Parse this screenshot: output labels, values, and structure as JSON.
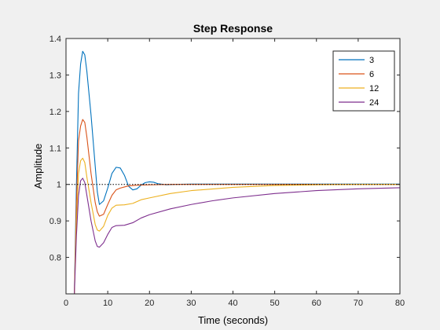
{
  "chart_data": {
    "type": "line",
    "title": "Step Response",
    "xlabel": "Time (seconds)",
    "ylabel": "Amplitude",
    "xlim": [
      0,
      80
    ],
    "ylim": [
      0.7,
      1.4
    ],
    "xticks": [
      0,
      10,
      20,
      30,
      40,
      50,
      60,
      70,
      80
    ],
    "yticks": [
      0.8,
      0.9,
      1.0,
      1.1,
      1.2,
      1.3,
      1.4
    ],
    "ytick_labels": [
      "0.8",
      "0.9",
      "1",
      "1.1",
      "1.2",
      "1.3",
      "1.4"
    ],
    "xtick_labels": [
      "0",
      "10",
      "20",
      "30",
      "40",
      "50",
      "60",
      "70",
      "80"
    ],
    "reference_line": {
      "y": 1.0,
      "style": "dotted"
    },
    "grid": false,
    "legend_position": "top-right",
    "series": [
      {
        "name": "3",
        "color": "#0072BD",
        "points": [
          [
            2,
            0.7
          ],
          [
            2.5,
            1.0
          ],
          [
            3,
            1.25
          ],
          [
            3.5,
            1.33
          ],
          [
            4,
            1.365
          ],
          [
            4.5,
            1.355
          ],
          [
            5,
            1.31
          ],
          [
            6,
            1.19
          ],
          [
            7,
            1.05
          ],
          [
            7.5,
            0.98
          ],
          [
            8,
            0.945
          ],
          [
            9,
            0.955
          ],
          [
            10,
            0.99
          ],
          [
            11,
            1.03
          ],
          [
            12,
            1.047
          ],
          [
            13,
            1.045
          ],
          [
            14,
            1.025
          ],
          [
            15,
            0.995
          ],
          [
            16,
            0.985
          ],
          [
            17,
            0.988
          ],
          [
            18,
            0.998
          ],
          [
            19,
            1.005
          ],
          [
            20,
            1.007
          ],
          [
            21,
            1.006
          ],
          [
            22,
            1.002
          ],
          [
            24,
            0.999
          ],
          [
            26,
            1.0
          ],
          [
            30,
            1.001
          ],
          [
            40,
            1.001
          ],
          [
            60,
            1.001
          ],
          [
            80,
            1.001
          ]
        ]
      },
      {
        "name": "6",
        "color": "#D95319",
        "points": [
          [
            2,
            0.7
          ],
          [
            2.5,
            0.95
          ],
          [
            3,
            1.12
          ],
          [
            3.5,
            1.16
          ],
          [
            4,
            1.178
          ],
          [
            4.5,
            1.17
          ],
          [
            5,
            1.13
          ],
          [
            6,
            1.03
          ],
          [
            7,
            0.95
          ],
          [
            7.5,
            0.925
          ],
          [
            8,
            0.913
          ],
          [
            9,
            0.918
          ],
          [
            10,
            0.945
          ],
          [
            11,
            0.97
          ],
          [
            12,
            0.985
          ],
          [
            13,
            0.99
          ],
          [
            14,
            0.993
          ],
          [
            15,
            0.996
          ],
          [
            17,
            0.998
          ],
          [
            20,
            0.999
          ],
          [
            25,
            1.0
          ],
          [
            40,
            1.0
          ],
          [
            80,
            1.0
          ]
        ]
      },
      {
        "name": "12",
        "color": "#EDB120",
        "points": [
          [
            2,
            0.7
          ],
          [
            2.5,
            0.9
          ],
          [
            3,
            1.03
          ],
          [
            3.5,
            1.065
          ],
          [
            4,
            1.072
          ],
          [
            4.5,
            1.06
          ],
          [
            5,
            1.02
          ],
          [
            6,
            0.95
          ],
          [
            7,
            0.89
          ],
          [
            7.5,
            0.875
          ],
          [
            8,
            0.872
          ],
          [
            9,
            0.885
          ],
          [
            10,
            0.915
          ],
          [
            11,
            0.935
          ],
          [
            12,
            0.943
          ],
          [
            14,
            0.944
          ],
          [
            16,
            0.948
          ],
          [
            18,
            0.958
          ],
          [
            20,
            0.963
          ],
          [
            25,
            0.975
          ],
          [
            30,
            0.983
          ],
          [
            40,
            0.992
          ],
          [
            50,
            0.997
          ],
          [
            60,
            0.999
          ],
          [
            70,
            1.0
          ],
          [
            80,
            1.0
          ]
        ]
      },
      {
        "name": "24",
        "color": "#7E2F8E",
        "points": [
          [
            2,
            0.7
          ],
          [
            2.5,
            0.86
          ],
          [
            3,
            0.97
          ],
          [
            3.5,
            1.01
          ],
          [
            4,
            1.017
          ],
          [
            4.5,
            1.005
          ],
          [
            5,
            0.97
          ],
          [
            6,
            0.9
          ],
          [
            7,
            0.845
          ],
          [
            7.5,
            0.83
          ],
          [
            8,
            0.828
          ],
          [
            9,
            0.84
          ],
          [
            10,
            0.863
          ],
          [
            11,
            0.882
          ],
          [
            12,
            0.887
          ],
          [
            14,
            0.888
          ],
          [
            16,
            0.895
          ],
          [
            18,
            0.908
          ],
          [
            20,
            0.917
          ],
          [
            25,
            0.933
          ],
          [
            30,
            0.945
          ],
          [
            35,
            0.955
          ],
          [
            40,
            0.963
          ],
          [
            50,
            0.975
          ],
          [
            60,
            0.983
          ],
          [
            70,
            0.988
          ],
          [
            80,
            0.991
          ]
        ]
      }
    ]
  }
}
